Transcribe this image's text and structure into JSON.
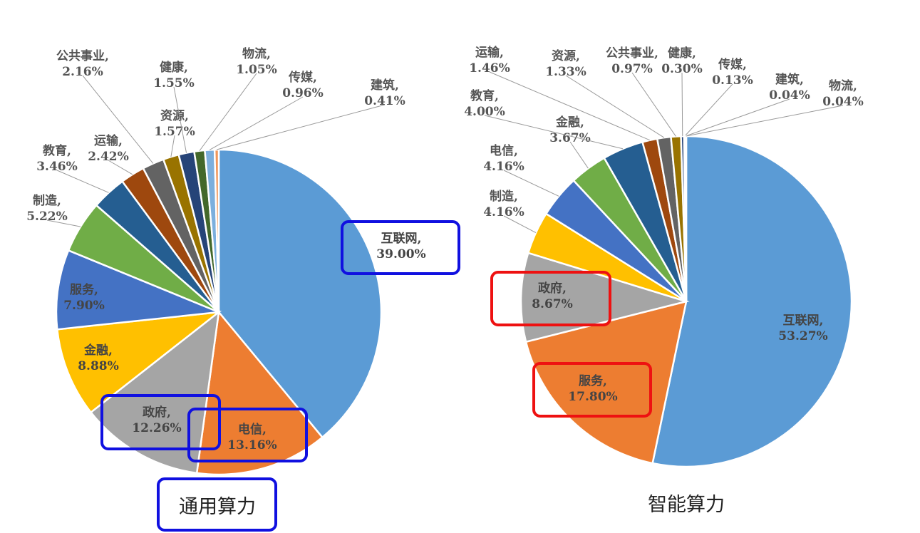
{
  "chart_data": [
    {
      "type": "pie",
      "title": "通用算力",
      "slices": [
        {
          "label": "互联网,",
          "value": 39.0,
          "value_text": "39.00%",
          "color": "#5b9bd5"
        },
        {
          "label": "电信,",
          "value": 13.16,
          "value_text": "13.16%",
          "color": "#ed7d31"
        },
        {
          "label": "政府,",
          "value": 12.26,
          "value_text": "12.26%",
          "color": "#a5a5a5"
        },
        {
          "label": "金融,",
          "value": 8.88,
          "value_text": "8.88%",
          "color": "#ffc000"
        },
        {
          "label": "服务,",
          "value": 7.9,
          "value_text": "7.90%",
          "color": "#4472c4"
        },
        {
          "label": "制造,",
          "value": 5.22,
          "value_text": "5.22%",
          "color": "#70ad47"
        },
        {
          "label": "教育,",
          "value": 3.46,
          "value_text": "3.46%",
          "color": "#255e91"
        },
        {
          "label": "运输,",
          "value": 2.42,
          "value_text": "2.42%",
          "color": "#9e480e"
        },
        {
          "label": "公共事业,",
          "value": 2.16,
          "value_text": "2.16%",
          "color": "#636363"
        },
        {
          "label": "资源,",
          "value": 1.57,
          "value_text": "1.57%",
          "color": "#997300"
        },
        {
          "label": "健康,",
          "value": 1.55,
          "value_text": "1.55%",
          "color": "#264478"
        },
        {
          "label": "物流,",
          "value": 1.05,
          "value_text": "1.05%",
          "color": "#43682b"
        },
        {
          "label": "传媒,",
          "value": 0.96,
          "value_text": "0.96%",
          "color": "#7cafdd"
        },
        {
          "label": "建筑,",
          "value": 0.41,
          "value_text": "0.41%",
          "color": "#f1975a"
        }
      ],
      "highlighted": [
        "互联网,",
        "电信,",
        "政府,"
      ],
      "highlight_color": "#1010e0"
    },
    {
      "type": "pie",
      "title": "智能算力",
      "slices": [
        {
          "label": "互联网,",
          "value": 53.27,
          "value_text": "53.27%",
          "color": "#5b9bd5"
        },
        {
          "label": "服务,",
          "value": 17.8,
          "value_text": "17.80%",
          "color": "#ed7d31"
        },
        {
          "label": "政府,",
          "value": 8.67,
          "value_text": "8.67%",
          "color": "#a5a5a5"
        },
        {
          "label": "制造,",
          "value": 4.16,
          "value_text": "4.16%",
          "color": "#ffc000"
        },
        {
          "label": "电信,",
          "value": 4.16,
          "value_text": "4.16%",
          "color": "#4472c4"
        },
        {
          "label": "金融,",
          "value": 3.67,
          "value_text": "3.67%",
          "color": "#70ad47"
        },
        {
          "label": "教育,",
          "value": 4.0,
          "value_text": "4.00%",
          "color": "#255e91"
        },
        {
          "label": "运输,",
          "value": 1.46,
          "value_text": "1.46%",
          "color": "#9e480e"
        },
        {
          "label": "资源,",
          "value": 1.33,
          "value_text": "1.33%",
          "color": "#636363"
        },
        {
          "label": "公共事业,",
          "value": 0.97,
          "value_text": "0.97%",
          "color": "#997300"
        },
        {
          "label": "健康,",
          "value": 0.3,
          "value_text": "0.30%",
          "color": "#264478"
        },
        {
          "label": "传媒,",
          "value": 0.13,
          "value_text": "0.13%",
          "color": "#43682b"
        },
        {
          "label": "建筑,",
          "value": 0.04,
          "value_text": "0.04%",
          "color": "#7cafdd"
        },
        {
          "label": "物流,",
          "value": 0.04,
          "value_text": "0.04%",
          "color": "#f1975a"
        }
      ],
      "highlighted": [
        "政府,",
        "服务,"
      ],
      "highlight_color": "#ee1111"
    }
  ]
}
